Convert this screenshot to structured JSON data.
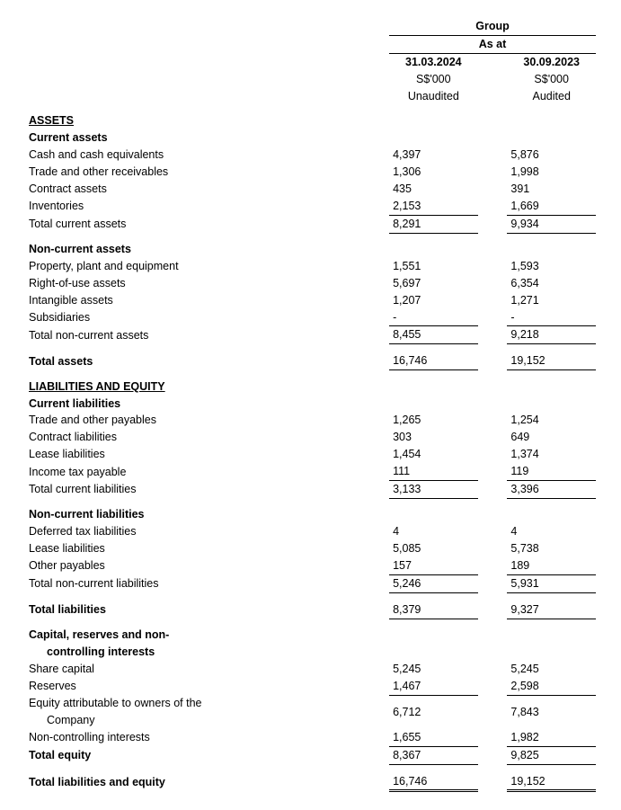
{
  "header": {
    "group": "Group",
    "asat": "As at",
    "col1": {
      "date": "31.03.2024",
      "unit": "S$'000",
      "audit": "Unaudited"
    },
    "col2": {
      "date": "30.09.2023",
      "unit": "S$'000",
      "audit": "Audited"
    }
  },
  "s": {
    "assets": "ASSETS",
    "cur_assets": "Current assets",
    "cash": {
      "l": "Cash and cash equivalents",
      "v1": "4,397",
      "v2": "5,876"
    },
    "trade": {
      "l": "Trade and other receivables",
      "v1": "1,306",
      "v2": "1,998"
    },
    "contract": {
      "l": "Contract assets",
      "v1": "435",
      "v2": "391"
    },
    "inv": {
      "l": "Inventories",
      "v1": "2,153",
      "v2": "1,669"
    },
    "tca": {
      "l": "Total current assets",
      "v1": "8,291",
      "v2": "9,934"
    },
    "nca_h": "Non-current assets",
    "ppe": {
      "l": "Property, plant and equipment",
      "v1": "1,551",
      "v2": "1,593"
    },
    "rou": {
      "l": "Right-of-use assets",
      "v1": "5,697",
      "v2": "6,354"
    },
    "intan": {
      "l": "Intangible assets",
      "v1": "1,207",
      "v2": "1,271"
    },
    "subs": {
      "l": "Subsidiaries",
      "v1": "-",
      "v2": "-"
    },
    "tnca": {
      "l": "Total non-current assets",
      "v1": "8,455",
      "v2": "9,218"
    },
    "ta": {
      "l": "Total assets",
      "v1": "16,746",
      "v2": "19,152"
    },
    "liab_eq": "LIABILITIES AND EQUITY",
    "cur_liab": "Current liabilities",
    "tp": {
      "l": "Trade and other payables",
      "v1": "1,265",
      "v2": "1,254"
    },
    "cl": {
      "l": "Contract liabilities",
      "v1": "303",
      "v2": "649"
    },
    "ll": {
      "l": "Lease liabilities",
      "v1": "1,454",
      "v2": "1,374"
    },
    "itp": {
      "l": "Income tax payable",
      "v1": "111",
      "v2": "119"
    },
    "tcl": {
      "l": "Total current liabilities",
      "v1": "3,133",
      "v2": "3,396"
    },
    "ncl_h": "Non-current liabilities",
    "dtl": {
      "l": "Deferred tax liabilities",
      "v1": "4",
      "v2": "4"
    },
    "ll2": {
      "l": "Lease liabilities",
      "v1": "5,085",
      "v2": "5,738"
    },
    "op": {
      "l": "Other payables",
      "v1": "157",
      "v2": "189"
    },
    "tncl": {
      "l": "Total non-current liabilities",
      "v1": "5,246",
      "v2": "5,931"
    },
    "tl": {
      "l": "Total liabilities",
      "v1": "8,379",
      "v2": "9,327"
    },
    "crnci1": "Capital, reserves and non-",
    "crnci2": "controlling interests",
    "sc": {
      "l": "Share capital",
      "v1": "5,245",
      "v2": "5,245"
    },
    "res": {
      "l": "Reserves",
      "v1": "1,467",
      "v2": "2,598"
    },
    "eao1": "Equity attributable to owners of the",
    "eao2": "Company",
    "eao": {
      "v1": "6,712",
      "v2": "7,843"
    },
    "nci": {
      "l": "Non-controlling interests",
      "v1": "1,655",
      "v2": "1,982"
    },
    "te": {
      "l": "Total equity",
      "v1": "8,367",
      "v2": "9,825"
    },
    "tle": {
      "l": "Total liabilities and equity",
      "v1": "16,746",
      "v2": "19,152"
    }
  }
}
